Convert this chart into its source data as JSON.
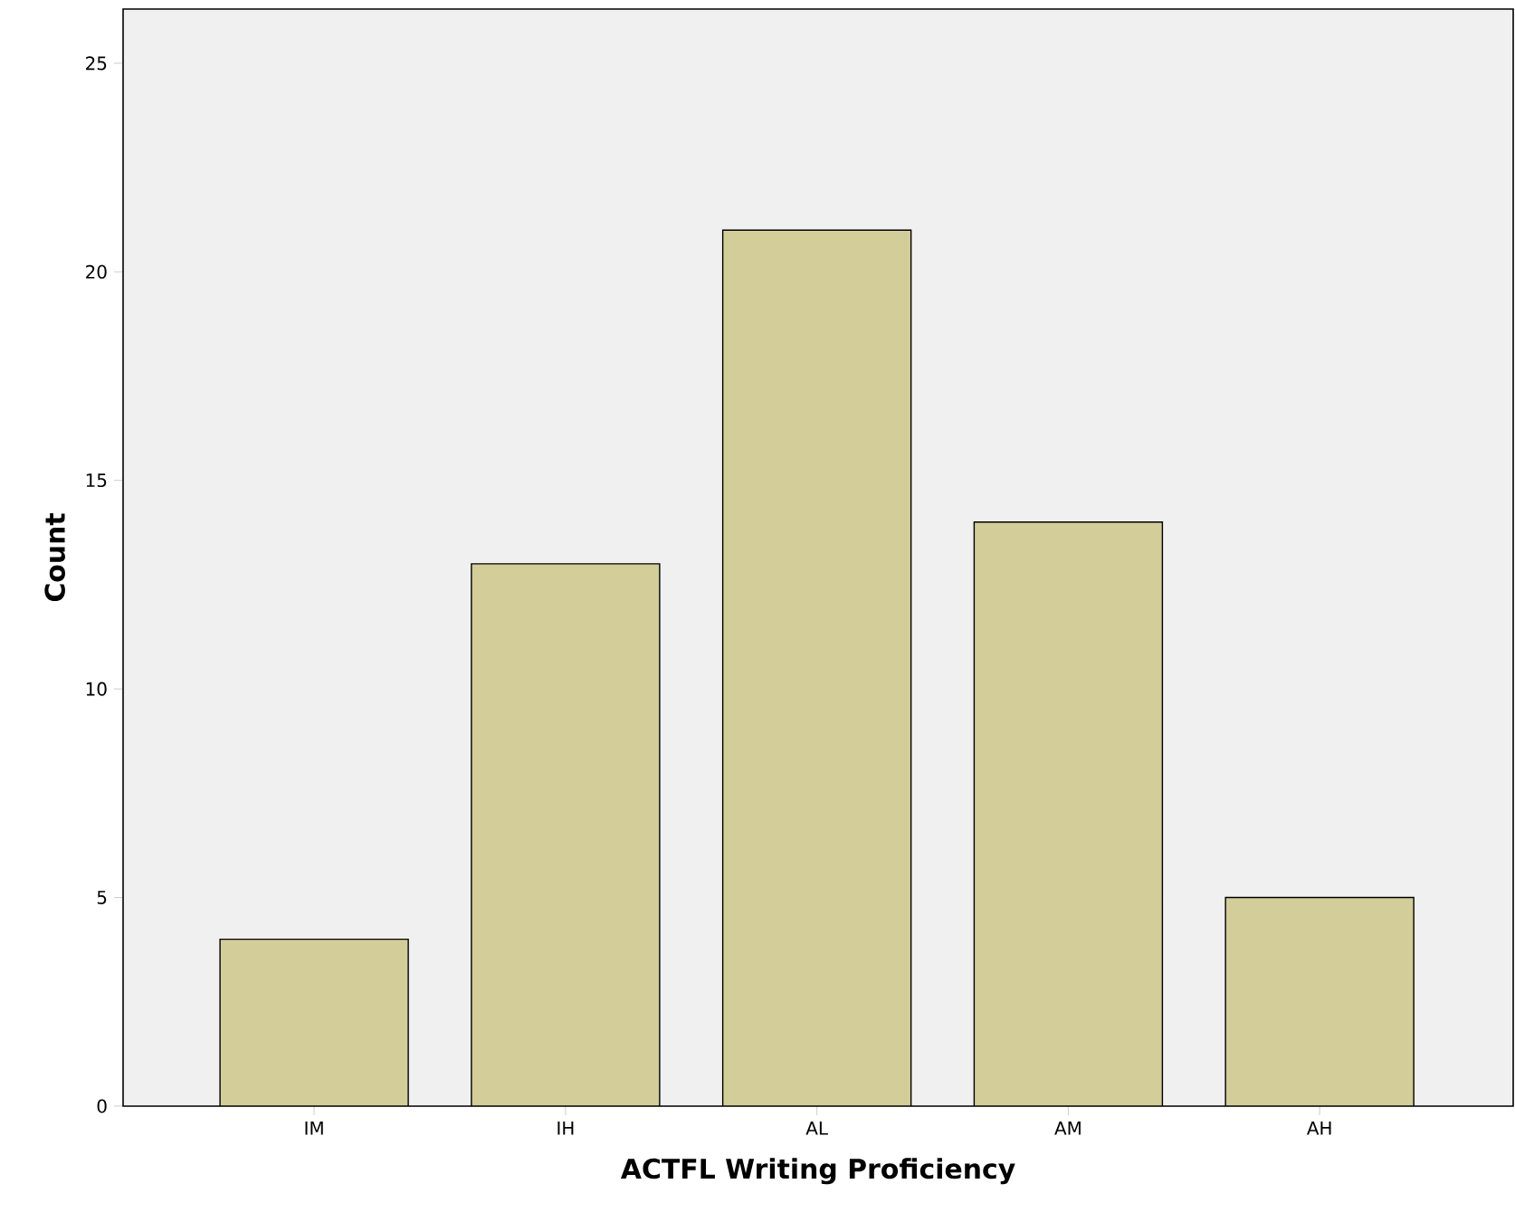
{
  "chart_data": {
    "type": "bar",
    "xlabel": "ACTFL Writing Proficiency",
    "ylabel": "Count",
    "categories": [
      "IM",
      "IH",
      "AL",
      "AM",
      "AH"
    ],
    "values": [
      4,
      13,
      21,
      14,
      5
    ],
    "color": "#d3cd99",
    "ylim": [
      0,
      26.3
    ],
    "yticks": [
      0,
      5,
      10,
      15,
      20,
      25
    ],
    "grid": false
  }
}
